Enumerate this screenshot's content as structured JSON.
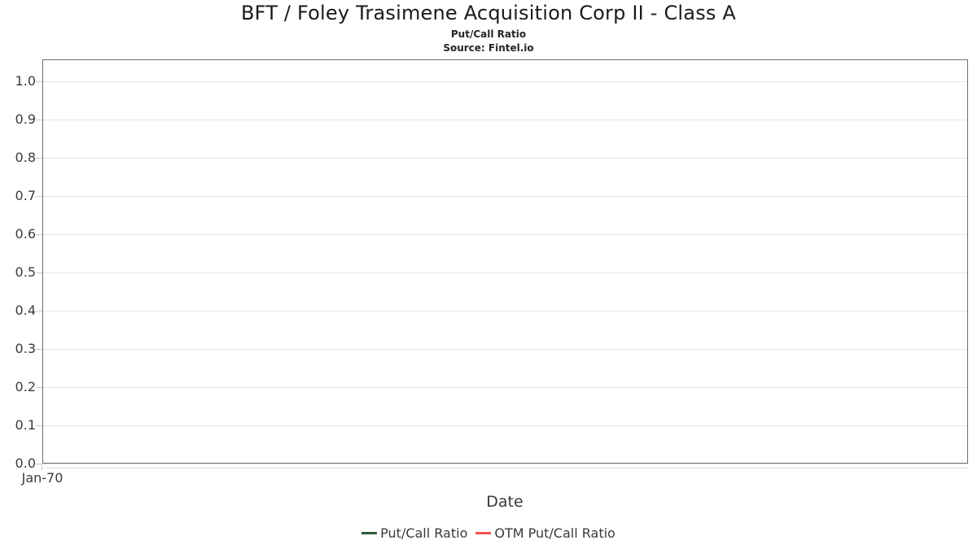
{
  "header": {
    "title": "BFT / Foley Trasimene Acquisition Corp II - Class A",
    "subtitle": "Put/Call Ratio",
    "source": "Source: Fintel.io"
  },
  "chart_data": {
    "type": "line",
    "title": "BFT / Foley Trasimene Acquisition Corp II - Class A",
    "subtitle": "Put/Call Ratio",
    "source": "Source: Fintel.io",
    "xlabel": "Date",
    "ylabel": "",
    "ylim": [
      0.0,
      1.06
    ],
    "yticks": [
      0.0,
      0.1,
      0.2,
      0.3,
      0.4,
      0.5,
      0.6,
      0.7,
      0.8,
      0.9,
      1.0
    ],
    "ytick_labels": [
      "0.0",
      "0.1",
      "0.2",
      "0.3",
      "0.4",
      "0.5",
      "0.6",
      "0.7",
      "0.8",
      "0.9",
      "1.0"
    ],
    "xtick_labels": [
      "Jan-70"
    ],
    "grid": true,
    "legend_position": "bottom-center",
    "series": [
      {
        "name": "Put/Call Ratio",
        "color": "#2e5c3b",
        "x": [],
        "values": []
      },
      {
        "name": "OTM Put/Call Ratio",
        "color": "#f4544f",
        "x": [],
        "values": []
      }
    ],
    "colors": {
      "gridline": "#e6e6e6",
      "spine": "#6e6e6e",
      "tick": "#c8c8c8",
      "text": "#3a3a3a",
      "title_text": "#1a1a1a",
      "background": "#ffffff"
    }
  }
}
